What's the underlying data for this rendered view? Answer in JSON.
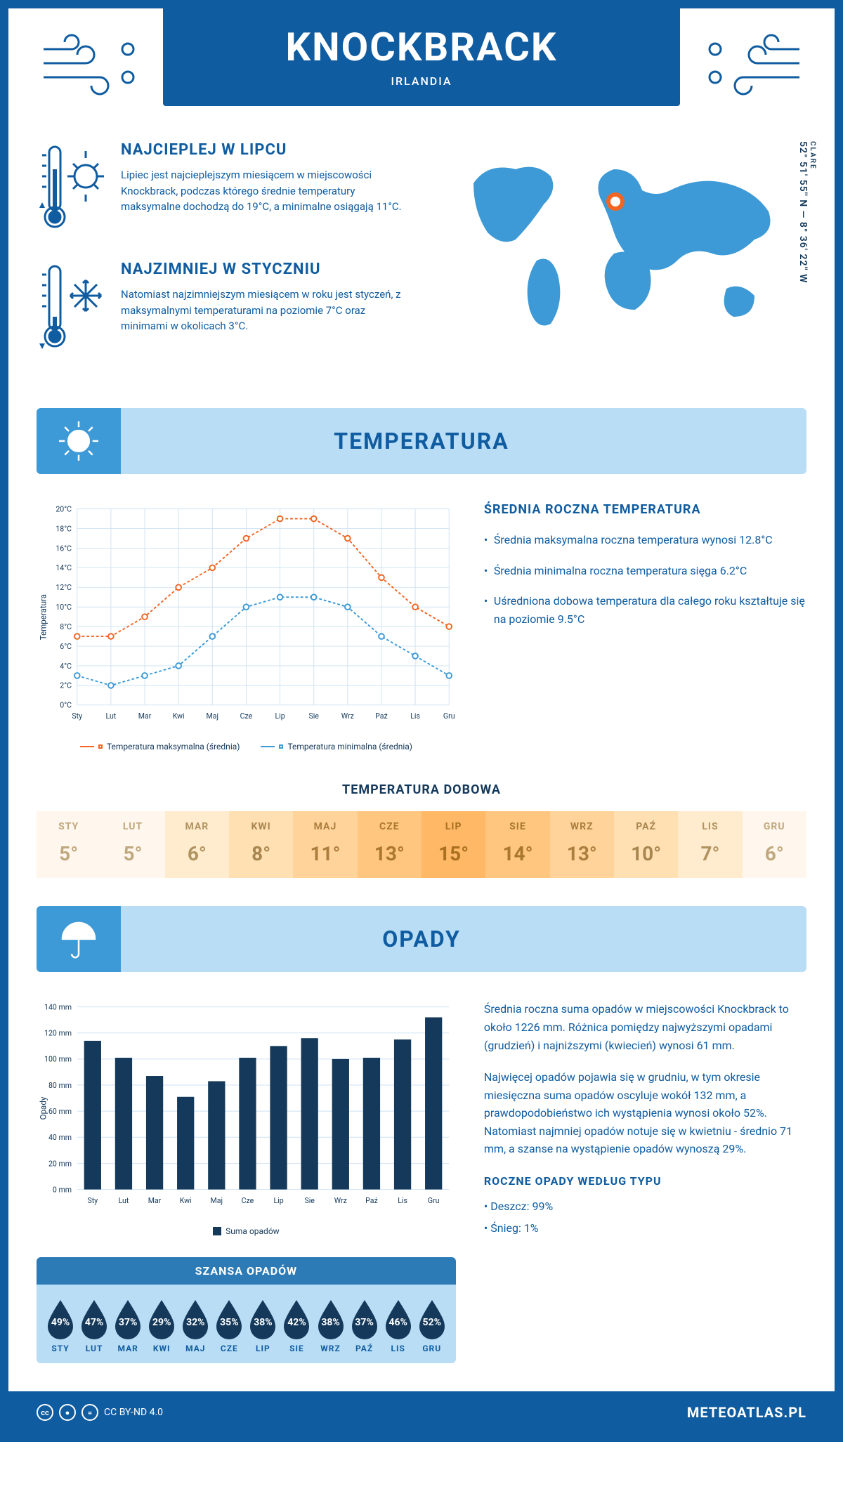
{
  "header": {
    "title": "KNOCKBRACK",
    "subtitle": "IRLANDIA"
  },
  "intro": {
    "hot": {
      "title": "NAJCIEPLEJ W LIPCU",
      "text": "Lipiec jest najcieplejszym miesiącem w miejscowości Knockbrack, podczas którego średnie temperatury maksymalne dochodzą do 19°C, a minimalne osiągają 11°C."
    },
    "cold": {
      "title": "NAJZIMNIEJ W STYCZNIU",
      "text": "Natomiast najzimniejszym miesiącem w roku jest styczeń, z maksymalnymi temperaturami na poziomie 7°C oraz minimami w okolicach 3°C."
    },
    "region": "CLARE",
    "coords": "52° 51' 55'' N — 8° 36' 22'' W"
  },
  "months_short": [
    "Sty",
    "Lut",
    "Mar",
    "Kwi",
    "Maj",
    "Cze",
    "Lip",
    "Sie",
    "Wrz",
    "Paź",
    "Lis",
    "Gru"
  ],
  "months_caps": [
    "STY",
    "LUT",
    "MAR",
    "KWI",
    "MAJ",
    "CZE",
    "LIP",
    "SIE",
    "WRZ",
    "PAŹ",
    "LIS",
    "GRU"
  ],
  "temperature": {
    "section_title": "TEMPERATURA",
    "chart": {
      "type": "line",
      "y_title": "Temperatura",
      "ylim": [
        0,
        20
      ],
      "ytick_step": 2,
      "ytick_suffix": "°C",
      "grid_color": "#cfe3f2",
      "axis_color": "#14395a",
      "series": {
        "max": {
          "label": "Temperatura maksymalna (średnia)",
          "color": "#f26522",
          "values": [
            7,
            7,
            9,
            12,
            14,
            17,
            19,
            19,
            17,
            13,
            10,
            8
          ]
        },
        "min": {
          "label": "Temperatura minimalna (średnia)",
          "color": "#3d9ad6",
          "values": [
            3,
            2,
            3,
            4,
            7,
            10,
            11,
            11,
            10,
            7,
            5,
            3
          ]
        }
      }
    },
    "notes": {
      "title": "ŚREDNIA ROCZNA TEMPERATURA",
      "items": [
        "Średnia maksymalna roczna temperatura wynosi 12.8°C",
        "Średnia minimalna roczna temperatura sięga 6.2°C",
        "Uśredniona dobowa temperatura dla całego roku kształtuje się na poziomie 9.5°C"
      ]
    },
    "daily": {
      "title": "TEMPERATURA DOBOWA",
      "values": [
        5,
        5,
        6,
        8,
        11,
        13,
        15,
        14,
        13,
        10,
        7,
        6
      ],
      "bg_colors": [
        "#fff7ed",
        "#fff7ed",
        "#ffeccf",
        "#ffe0b3",
        "#ffd399",
        "#ffc680",
        "#ffb866",
        "#ffc680",
        "#ffd399",
        "#ffe0b3",
        "#ffeccf",
        "#fff7ed"
      ],
      "label_colors": [
        "#bfa87d",
        "#bfa87d",
        "#b0935f",
        "#a8864f",
        "#aa7f3e",
        "#a9772e",
        "#a8701f",
        "#a9772e",
        "#aa7f3e",
        "#a8864f",
        "#b0935f",
        "#bfa87d"
      ]
    }
  },
  "precipitation": {
    "section_title": "OPADY",
    "chart": {
      "type": "bar",
      "y_title": "Opady",
      "ylim": [
        0,
        140
      ],
      "ytick_step": 20,
      "ytick_suffix": " mm",
      "values": [
        114,
        101,
        87,
        71,
        83,
        101,
        110,
        116,
        100,
        101,
        115,
        132
      ],
      "bar_color": "#14395a",
      "grid_color": "#cfe3f2",
      "legend": "Suma opadów"
    },
    "notes": {
      "p1": "Średnia roczna suma opadów w miejscowości Knockbrack to około 1226 mm. Różnica pomiędzy najwyższymi opadami (grudzień) i najniższymi (kwiecień) wynosi 61 mm.",
      "p2": "Najwięcej opadów pojawia się w grudniu, w tym okresie miesięczna suma opadów oscyluje wokół 132 mm, a prawdopodobieństwo ich wystąpienia wynosi około 52%. Natomiast najmniej opadów notuje się w kwietniu - średnio 71 mm, a szanse na wystąpienie opadów wynoszą 29%.",
      "type_title": "ROCZNE OPADY WEDŁUG TYPU",
      "types": [
        "Deszcz: 99%",
        "Śnieg: 1%"
      ]
    },
    "chance": {
      "title": "SZANSA OPADÓW",
      "values": [
        49,
        47,
        37,
        29,
        32,
        35,
        38,
        42,
        38,
        37,
        46,
        52
      ],
      "drop_color": "#14395a"
    }
  },
  "footer": {
    "license": "CC BY-ND 4.0",
    "brand": "METEOATLAS.PL"
  }
}
